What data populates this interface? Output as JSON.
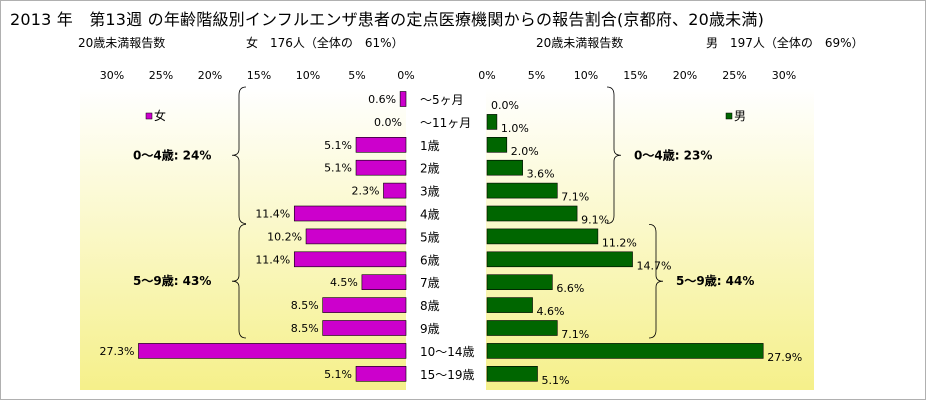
{
  "title": "2013 年　第13週 の年齢階級別インフルエンザ患者の定点医療機関からの報告割合(京都府、20歳未満)",
  "subtitles": {
    "left_label": "20歳未満報告数",
    "left_info": "女　176人（全体の　61%）",
    "right_label": "20歳未満報告数",
    "right_info": "男　197人（全体の　69%）"
  },
  "colors": {
    "female": "#cc00cc",
    "male": "#006600",
    "bg_top": "#ffffff",
    "bg_bottom": "#f5f08a"
  },
  "chart_data": {
    "type": "bar",
    "categories": [
      "～5ヶ月",
      "～11ヶ月",
      "1歳",
      "2歳",
      "3歳",
      "4歳",
      "5歳",
      "6歳",
      "7歳",
      "8歳",
      "9歳",
      "10～14歳",
      "15～19歳"
    ],
    "series": [
      {
        "name": "女",
        "values": [
          0.6,
          0.0,
          5.1,
          5.1,
          2.3,
          11.4,
          10.2,
          11.4,
          4.5,
          8.5,
          8.5,
          27.3,
          5.1
        ],
        "labels": [
          "0.6%",
          "0.0%",
          "5.1%",
          "5.1%",
          "2.3%",
          "11.4%",
          "10.2%",
          "11.4%",
          "4.5%",
          "8.5%",
          "8.5%",
          "27.3%",
          "5.1%"
        ]
      },
      {
        "name": "男",
        "values": [
          0.0,
          1.0,
          2.0,
          3.6,
          7.1,
          9.1,
          11.2,
          14.7,
          6.6,
          4.6,
          7.1,
          27.9,
          5.1
        ],
        "labels": [
          "0.0%",
          "1.0%",
          "2.0%",
          "3.6%",
          "7.1%",
          "9.1%",
          "11.2%",
          "14.7%",
          "6.6%",
          "4.6%",
          "7.1%",
          "27.9%",
          "5.1%"
        ]
      }
    ],
    "xlim": [
      0,
      30
    ],
    "ticks": [
      "0%",
      "5%",
      "10%",
      "15%",
      "20%",
      "25%",
      "30%"
    ],
    "grid": false,
    "annotations": {
      "female": [
        {
          "text": "0～4歳: 24%",
          "from": 0,
          "to": 5
        },
        {
          "text": "5～9歳: 43%",
          "from": 6,
          "to": 10
        }
      ],
      "male": [
        {
          "text": "0～4歳:  23%",
          "from": 0,
          "to": 5
        },
        {
          "text": "5～9歳: 44%",
          "from": 6,
          "to": 10
        }
      ]
    }
  }
}
